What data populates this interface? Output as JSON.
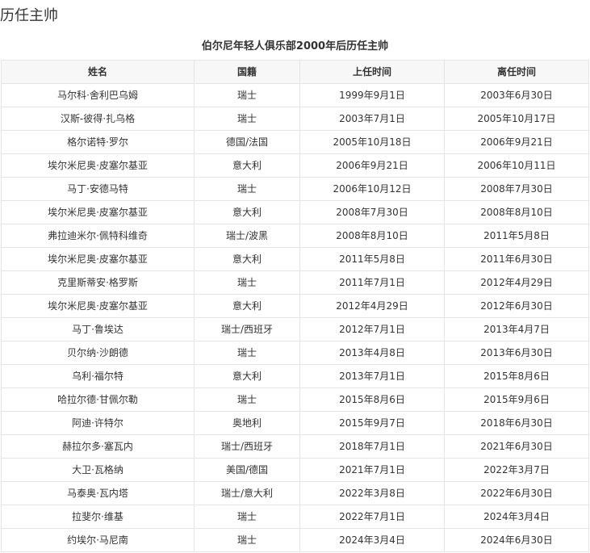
{
  "section_title": "历任主帅",
  "table": {
    "caption": "伯尔尼年轻人俱乐部2000年后历任主帅",
    "headers": [
      "姓名",
      "国籍",
      "上任时间",
      "离任时间"
    ],
    "rows": [
      [
        "马尔科·舍利巴乌姆",
        "瑞士",
        "1999年9月1日",
        "2003年6月30日"
      ],
      [
        "汉斯-彼得·扎乌格",
        "瑞士",
        "2003年7月1日",
        "2005年10月17日"
      ],
      [
        "格尔诺特·罗尔",
        "德国/法国",
        "2005年10月18日",
        "2006年9月21日"
      ],
      [
        "埃尔米尼奥·皮塞尔基亚",
        "意大利",
        "2006年9月21日",
        "2006年10月11日"
      ],
      [
        "马丁·安德马特",
        "瑞士",
        "2006年10月12日",
        "2008年7月30日"
      ],
      [
        "埃尔米尼奥·皮塞尔基亚",
        "意大利",
        "2008年7月30日",
        "2008年8月10日"
      ],
      [
        "弗拉迪米尔·佩特科维奇",
        "瑞士/波黑",
        "2008年8月10日",
        "2011年5月8日"
      ],
      [
        "埃尔米尼奥·皮塞尔基亚",
        "意大利",
        "2011年5月8日",
        "2011年6月30日"
      ],
      [
        "克里斯蒂安·格罗斯",
        "瑞士",
        "2011年7月1日",
        "2012年4月29日"
      ],
      [
        "埃尔米尼奥·皮塞尔基亚",
        "意大利",
        "2012年4月29日",
        "2012年6月30日"
      ],
      [
        "马丁·鲁埃达",
        "瑞士/西班牙",
        "2012年7月1日",
        "2013年4月7日"
      ],
      [
        "贝尔纳·沙朗德",
        "瑞士",
        "2013年4月8日",
        "2013年6月30日"
      ],
      [
        "乌利·福尔特",
        "意大利",
        "2013年7月1日",
        "2015年8月6日"
      ],
      [
        "哈拉尔德·甘佩尔勒",
        "瑞士",
        "2015年8月6日",
        "2015年9月6日"
      ],
      [
        "阿迪·许特尔",
        "奥地利",
        "2015年9月7日",
        "2018年6月30日"
      ],
      [
        "赫拉尔多·塞瓦内",
        "瑞士/西班牙",
        "2018年7月1日",
        "2021年6月30日"
      ],
      [
        "大卫·瓦格纳",
        "美国/德国",
        "2021年7月1日",
        "2022年3月7日"
      ],
      [
        "马泰奥·瓦内塔",
        "瑞士/意大利",
        "2022年3月8日",
        "2022年6月30日"
      ],
      [
        "拉斐尔·维基",
        "瑞士",
        "2022年7月1日",
        "2024年3月4日"
      ],
      [
        "约埃尔·马尼南",
        "瑞士",
        "2024年3月4日",
        "2024年6月30日"
      ]
    ]
  }
}
